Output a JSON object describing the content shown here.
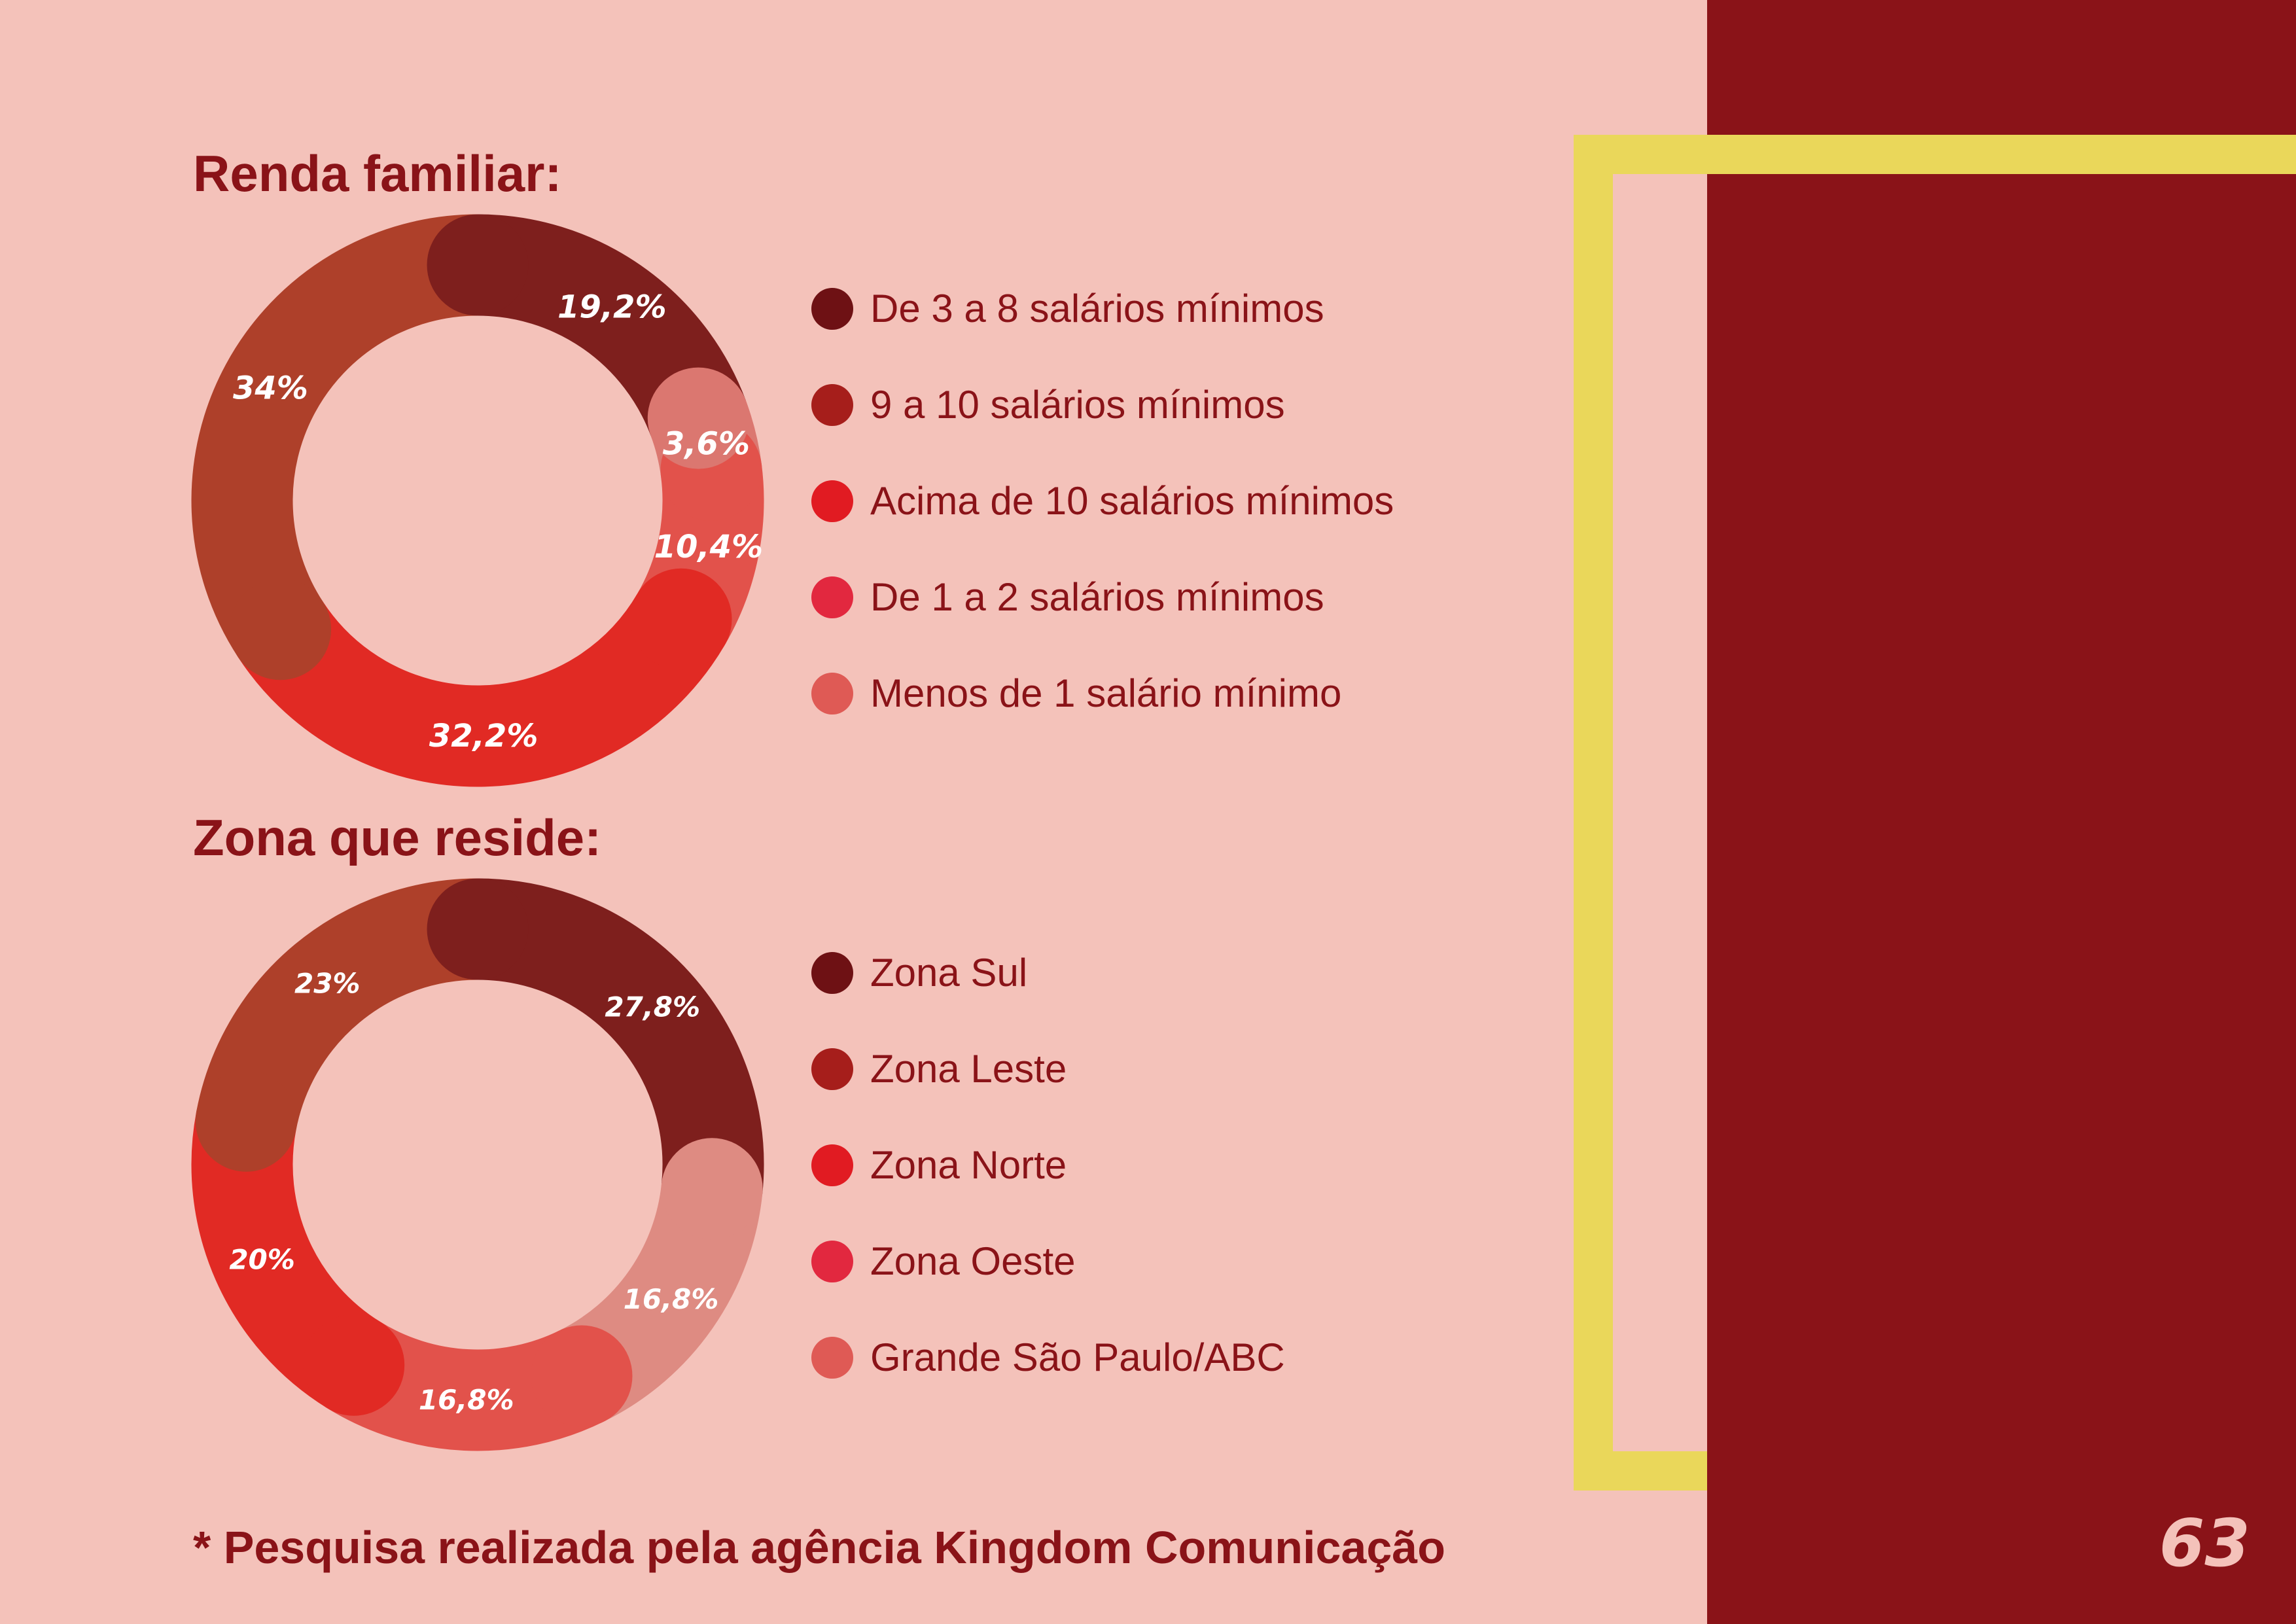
{
  "page": {
    "footnote": "* Pesquisa realizada pela agência Kingdom Comunicação",
    "page_number": "63"
  },
  "colors": {
    "background": "#F4C2BA",
    "side_panel": "#8A1318",
    "frame": "#EAD75A",
    "text": "#8A1318"
  },
  "chart_data": [
    {
      "type": "pie",
      "title": "Renda familiar:",
      "categories": [
        "De 3 a 8 salários mínimos",
        "Menos de 1 salário mínimo",
        "De 1 a 2 salários mínimos",
        "Acima de 10 salários mínimos",
        "9 a 10 salários mínimos"
      ],
      "values": [
        19.2,
        3.6,
        10.4,
        32.2,
        34
      ],
      "labels": [
        "19,2%",
        "3,6%",
        "10,4%",
        "32,2%",
        "34%"
      ],
      "colors": [
        "#7E1F1D",
        "#DB7770",
        "#E2524B",
        "#E12A24",
        "#AE402A"
      ],
      "legend": [
        {
          "label": "De 3 a 8 salários mínimos",
          "color": "#6E1114"
        },
        {
          "label": "9 a 10 salários mínimos",
          "color": "#A61E1B"
        },
        {
          "label": "Acima de 10 salários mínimos",
          "color": "#E11B22"
        },
        {
          "label": "De 1 a 2 salários mínimos",
          "color": "#E2283F"
        },
        {
          "label": "Menos de 1 salário mínimo",
          "color": "#DF5A55"
        }
      ],
      "legend_position": "right"
    },
    {
      "type": "pie",
      "title": "Zona que reside:",
      "categories": [
        "Zona Sul",
        "Grande São Paulo/ABC",
        "Zona Oeste",
        "Zona Norte",
        "Zona Leste"
      ],
      "values": [
        27.8,
        16.8,
        16.8,
        20,
        23
      ],
      "labels": [
        "27,8%",
        "16,8%",
        "16,8%",
        "20%",
        "23%"
      ],
      "colors": [
        "#7E1F1D",
        "#DE8B82",
        "#E2524B",
        "#E12A24",
        "#AE402A"
      ],
      "legend": [
        {
          "label": "Zona Sul",
          "color": "#6E1114"
        },
        {
          "label": "Zona Leste",
          "color": "#A61E1B"
        },
        {
          "label": "Zona Norte",
          "color": "#E11B22"
        },
        {
          "label": "Zona Oeste",
          "color": "#E2283F"
        },
        {
          "label": "Grande São Paulo/ABC",
          "color": "#DF5A55"
        }
      ],
      "legend_position": "right"
    }
  ]
}
